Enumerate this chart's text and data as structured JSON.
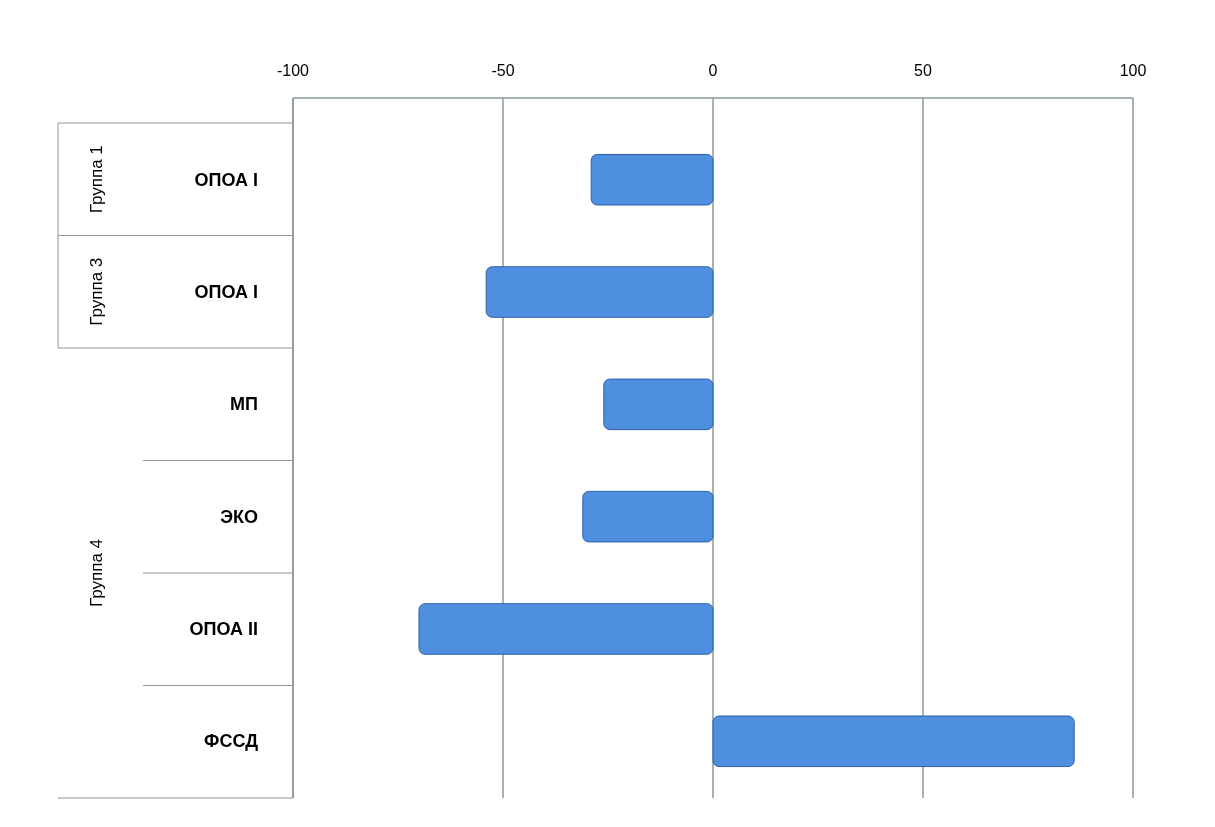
{
  "chart_data": {
    "type": "bar",
    "orientation": "horizontal",
    "categories": [
      "ОПОА I",
      "ОПОА I",
      "МП",
      "ЭКО",
      "ОПОА II",
      "ФССД"
    ],
    "values": [
      -29,
      -54,
      -26,
      -31,
      -70,
      86
    ],
    "color": "#4f8fe0",
    "xlim": [
      -100,
      100
    ],
    "xticks": [
      -100,
      -50,
      0,
      50,
      100
    ],
    "grid": "x",
    "annotations": [
      "Группа 1",
      "Группа 3",
      "Группа 4"
    ]
  }
}
